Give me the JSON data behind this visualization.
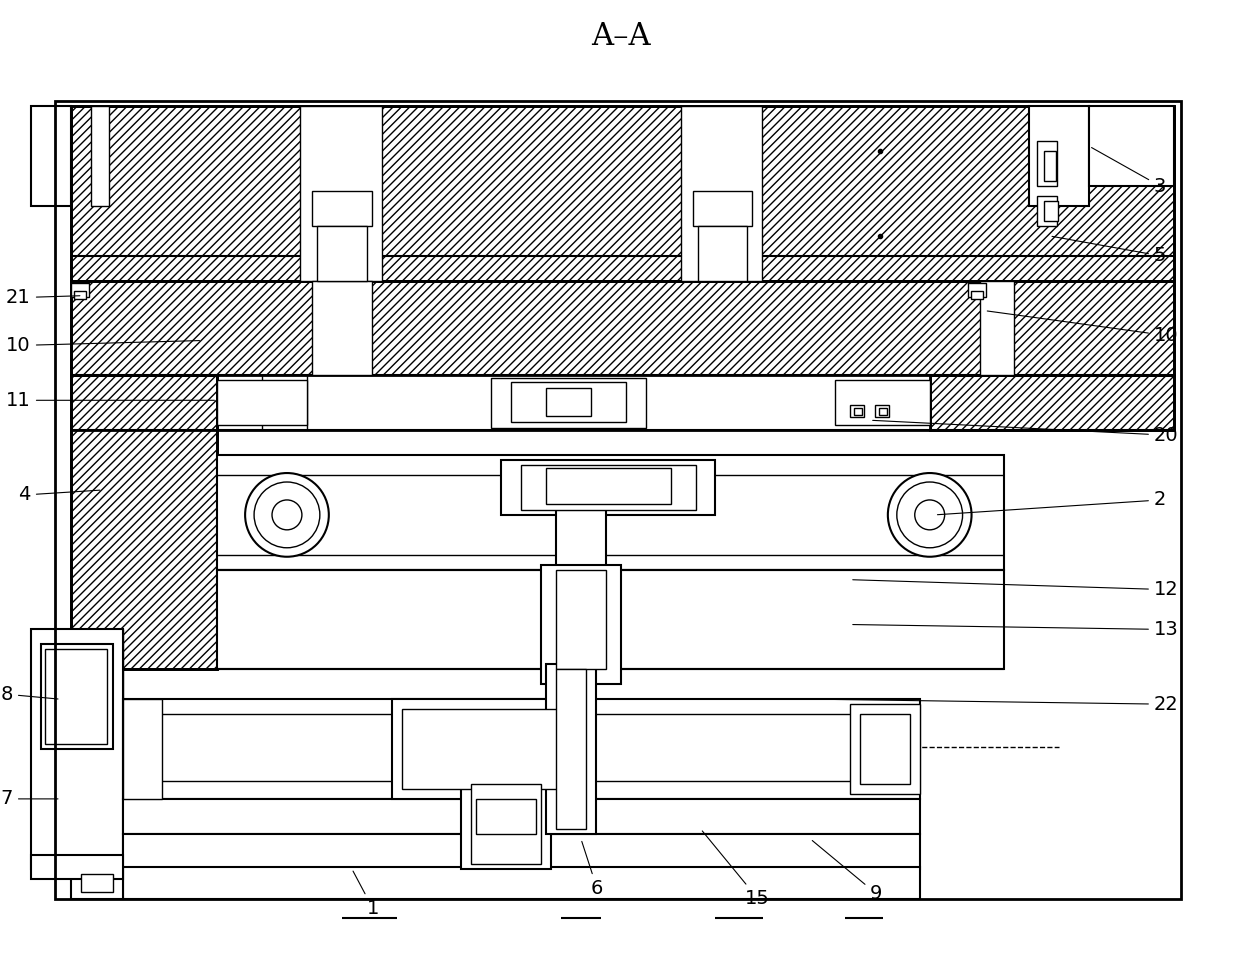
{
  "title": "A–A",
  "background_color": "#ffffff",
  "figsize": [
    12.4,
    9.68
  ],
  "dpi": 100,
  "lw_thick": 2.0,
  "lw_med": 1.5,
  "lw_thin": 1.0,
  "label_fs": 14
}
